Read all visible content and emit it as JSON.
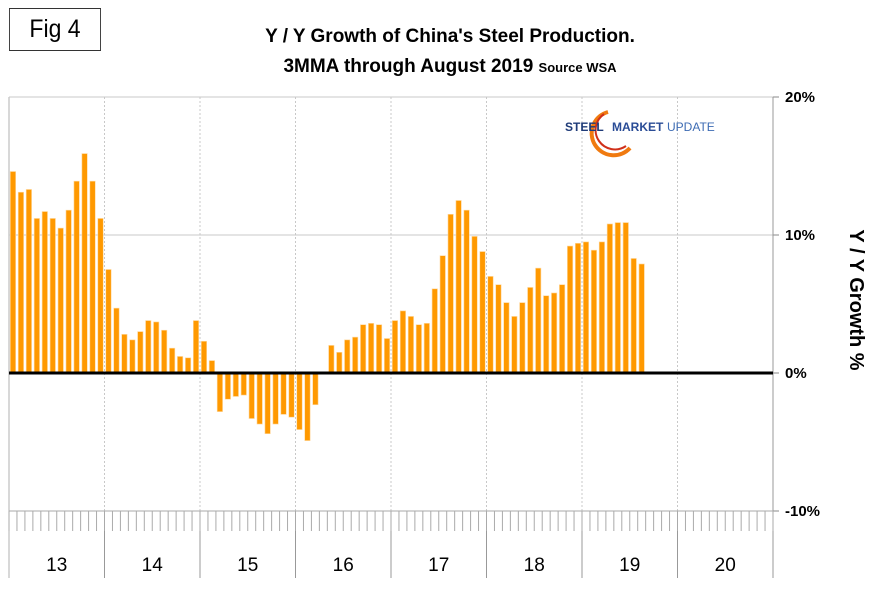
{
  "figure_label": "Fig 4",
  "title_line1": "Y / Y Growth of China's Steel Production.",
  "title_line2": "3MMA through August 2019",
  "title_source": "Source WSA",
  "logo": {
    "word1": "STEEL",
    "word2": "MARKET",
    "word3": "UPDATE"
  },
  "colors": {
    "bar": "#FF9900",
    "bar_edge": "#FFD9A0",
    "zero_line": "#000000",
    "gridline": "#C8C8C8"
  },
  "chart_data": {
    "type": "bar",
    "title": "Y / Y Growth of China's Steel Production. 3MMA through August 2019",
    "subtitle": "Source WSA",
    "xlabel": "",
    "ylabel": "Y / Y Growth %",
    "ylim": [
      -10,
      20
    ],
    "yticks": [
      {
        "value": 20,
        "label": "20%"
      },
      {
        "value": 10,
        "label": "10%"
      },
      {
        "value": 0,
        "label": "0%"
      },
      {
        "value": -10,
        "label": "-10%"
      }
    ],
    "x_years": [
      "13",
      "14",
      "15",
      "16",
      "17",
      "18",
      "19",
      "20"
    ],
    "x_start": "2013-01",
    "x_months_total": 96,
    "grid": true,
    "legend": "none",
    "series": [
      {
        "name": "Y/Y Growth 3MMA",
        "months": [
          "2013-01",
          "2013-02",
          "2013-03",
          "2013-04",
          "2013-05",
          "2013-06",
          "2013-07",
          "2013-08",
          "2013-09",
          "2013-10",
          "2013-11",
          "2013-12",
          "2014-01",
          "2014-02",
          "2014-03",
          "2014-04",
          "2014-05",
          "2014-06",
          "2014-07",
          "2014-08",
          "2014-09",
          "2014-10",
          "2014-11",
          "2014-12",
          "2015-01",
          "2015-02",
          "2015-03",
          "2015-04",
          "2015-05",
          "2015-06",
          "2015-07",
          "2015-08",
          "2015-09",
          "2015-10",
          "2015-11",
          "2015-12",
          "2016-01",
          "2016-02",
          "2016-03",
          "2016-04",
          "2016-05",
          "2016-06",
          "2016-07",
          "2016-08",
          "2016-09",
          "2016-10",
          "2016-11",
          "2016-12",
          "2017-01",
          "2017-02",
          "2017-03",
          "2017-04",
          "2017-05",
          "2017-06",
          "2017-07",
          "2017-08",
          "2017-09",
          "2017-10",
          "2017-11",
          "2017-12",
          "2018-01",
          "2018-02",
          "2018-03",
          "2018-04",
          "2018-05",
          "2018-06",
          "2018-07",
          "2018-08",
          "2018-09",
          "2018-10",
          "2018-11",
          "2018-12",
          "2019-01",
          "2019-02",
          "2019-03",
          "2019-04",
          "2019-05",
          "2019-06",
          "2019-07",
          "2019-08"
        ],
        "values": [
          14.6,
          13.1,
          13.3,
          11.2,
          11.7,
          11.2,
          10.5,
          11.8,
          13.9,
          15.9,
          13.9,
          11.2,
          7.5,
          4.7,
          2.8,
          2.4,
          3.0,
          3.8,
          3.7,
          3.1,
          1.8,
          1.2,
          1.1,
          3.8,
          2.3,
          0.9,
          -2.8,
          -1.9,
          -1.7,
          -1.6,
          -3.3,
          -3.7,
          -4.4,
          -3.7,
          -3.0,
          -3.2,
          -4.1,
          -4.9,
          -2.3,
          0.0,
          2.0,
          1.5,
          2.4,
          2.6,
          3.5,
          3.6,
          3.5,
          2.5,
          3.8,
          4.5,
          4.1,
          3.5,
          3.6,
          6.1,
          8.5,
          11.5,
          12.5,
          11.8,
          9.9,
          8.8,
          7.0,
          6.4,
          5.1,
          4.1,
          5.1,
          6.2,
          7.6,
          5.6,
          5.8,
          6.4,
          9.2,
          9.4,
          9.5,
          8.9,
          9.5,
          10.8,
          10.9,
          10.9,
          8.3,
          7.9
        ]
      }
    ]
  }
}
